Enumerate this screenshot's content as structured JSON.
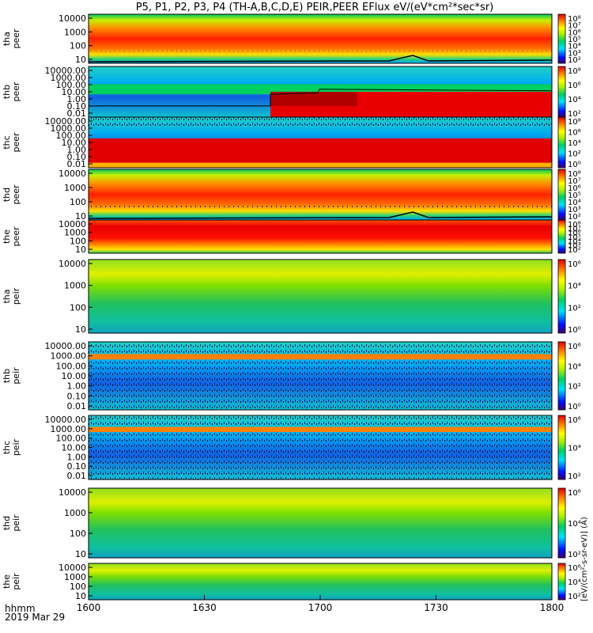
{
  "chart_data": {
    "type": "heatmap",
    "title": "P5, P1, P2, P3, P4 (TH-A,B,C,D,E) PEIR,PEER EFlux eV/(eV*cm²*sec*sr)",
    "x_axis": {
      "ticks": [
        "1600",
        "1630",
        "1700",
        "1730",
        "1800"
      ],
      "time_label": "hhmm",
      "date_label": "2019 Mar 29",
      "range": [
        "16:00",
        "18:00"
      ]
    },
    "colorbar_unit_label": "[eV/(cm²-s-sr-eV)] (A)",
    "panels": [
      {
        "id": "tha_peer",
        "label": [
          "tha",
          "peer"
        ],
        "yscale": "log",
        "yticks": [
          "10000",
          "1000",
          "100",
          "10"
        ],
        "cbar_ticks": [
          "10⁸",
          "10⁷",
          "10⁶",
          "10⁵",
          "10⁴",
          "10³",
          "10²"
        ]
      },
      {
        "id": "thb_peer",
        "label": [
          "thb",
          "peer"
        ],
        "yscale": "log",
        "yticks": [
          "10000.00",
          "1000.00",
          "100.00",
          "10.00",
          "1.00",
          "0.10",
          "0.01"
        ],
        "cbar_ticks": [
          "10⁸",
          "10⁶",
          "10⁴",
          "10²"
        ]
      },
      {
        "id": "thc_peer",
        "label": [
          "thc",
          "peer"
        ],
        "yscale": "log",
        "yticks": [
          "10000.00",
          "1000.00",
          "100.00",
          "10.00",
          "1.00",
          "0.10",
          "0.01"
        ],
        "cbar_ticks": [
          "10⁸",
          "10⁶",
          "10⁴",
          "10²",
          "10⁰"
        ]
      },
      {
        "id": "thd_peer",
        "label": [
          "thd",
          "peer"
        ],
        "yscale": "log",
        "yticks": [
          "10000",
          "1000",
          "100",
          "10"
        ],
        "cbar_ticks": [
          "10⁸",
          "10⁷",
          "10⁶",
          "10⁵",
          "10⁴",
          "10³",
          "10²"
        ]
      },
      {
        "id": "the_peer",
        "label": [
          "the",
          "peer"
        ],
        "yscale": "log",
        "yticks": [
          "10000",
          "1000",
          "100",
          "10"
        ],
        "cbar_ticks": [
          "10⁸",
          "10⁷",
          "10⁶",
          "10⁵",
          "10⁴",
          "10³",
          "10²"
        ]
      },
      {
        "id": "tha_peir",
        "label": [
          "tha",
          "peir"
        ],
        "yscale": "log",
        "yticks": [
          "10000",
          "1000",
          "100",
          "10"
        ],
        "cbar_ticks": [
          "10⁶",
          "10⁴",
          "10²",
          "10⁰"
        ]
      },
      {
        "id": "thb_peir",
        "label": [
          "thb",
          "peir"
        ],
        "yscale": "log",
        "yticks": [
          "10000.00",
          "1000.00",
          "100.00",
          "10.00",
          "1.00",
          "0.10",
          "0.01"
        ],
        "cbar_ticks": [
          "10⁶",
          "10⁴",
          "10²",
          "10⁰"
        ]
      },
      {
        "id": "thc_peir",
        "label": [
          "thc",
          "peir"
        ],
        "yscale": "log",
        "yticks": [
          "10000.00",
          "1000.00",
          "100.00",
          "10.00",
          "1.00",
          "0.10",
          "0.01"
        ],
        "cbar_ticks": [
          "10⁶",
          "10⁴",
          "10²"
        ]
      },
      {
        "id": "thd_peir",
        "label": [
          "thd",
          "peir"
        ],
        "yscale": "log",
        "yticks": [
          "10000",
          "1000",
          "100",
          "10"
        ],
        "cbar_ticks": [
          "10⁶",
          "10⁴",
          "10²"
        ]
      },
      {
        "id": "the_peir",
        "label": [
          "the",
          "peir"
        ],
        "yscale": "log",
        "yticks": [
          "10000",
          "1000",
          "100",
          "10"
        ],
        "cbar_ticks": [
          "10⁶",
          "10⁴",
          "10²"
        ]
      }
    ]
  }
}
